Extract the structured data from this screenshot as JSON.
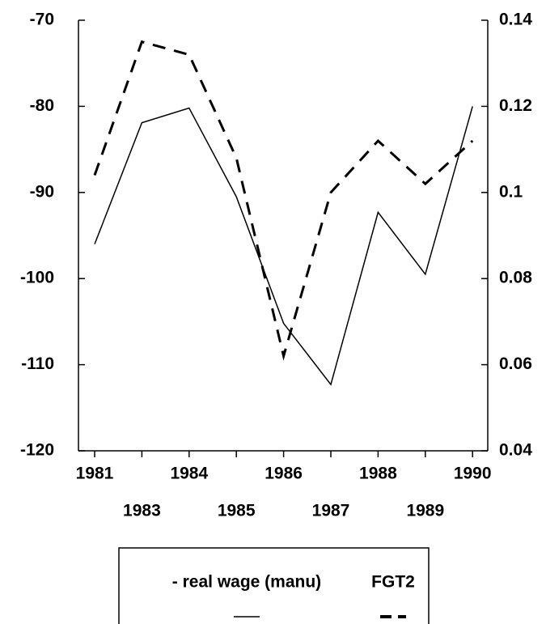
{
  "chart_data": {
    "type": "line",
    "categories": [
      "1981",
      "1983",
      "1984",
      "1985",
      "1986",
      "1987",
      "1988",
      "1989",
      "1990"
    ],
    "series": [
      {
        "name": "- real wage (manu)",
        "color": "#000000",
        "dash": false,
        "values": [
          -96.0,
          -81.9,
          -80.2,
          -90.5,
          -105.2,
          -112.3,
          -92.3,
          -99.5,
          -80.0
        ]
      },
      {
        "name": "FGT2",
        "color": "#000000",
        "dash": true,
        "axis": "y2",
        "values": [
          0.104,
          0.135,
          0.132,
          0.108,
          0.062,
          0.1,
          0.112,
          0.102,
          0.112
        ]
      }
    ],
    "ylim": [
      -120,
      -70
    ],
    "yticks": [
      -120,
      -110,
      -100,
      -90,
      -80,
      -70
    ],
    "y2lim": [
      0.04,
      0.14
    ],
    "y2ticks": [
      0.04,
      0.06,
      0.08,
      {
        "value": 0.1,
        "label": "0.1"
      },
      0.12,
      0.14
    ]
  }
}
